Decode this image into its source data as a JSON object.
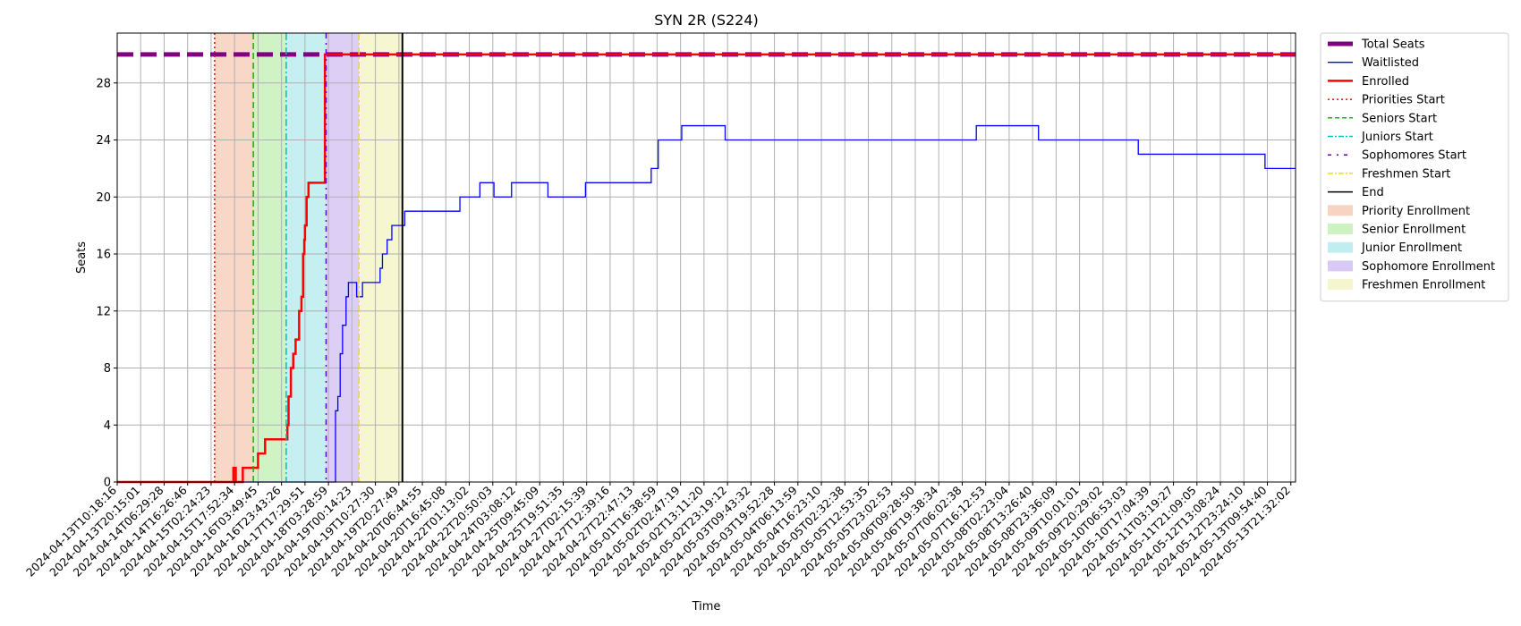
{
  "chart_data": {
    "type": "line",
    "title": "SYN 2R (S224)",
    "xlabel": "Time",
    "ylabel": "Seats",
    "ylim": [
      0,
      31.5
    ],
    "yticks": [
      0,
      4,
      8,
      12,
      16,
      20,
      24,
      28
    ],
    "grid": true,
    "legend_position": "outside-right",
    "x_tick_labels": [
      "2024-04-13T10:18:16",
      "2024-04-13T20:15:01",
      "2024-04-14T06:29:28",
      "2024-04-14T16:26:46",
      "2024-04-15T02:24:23",
      "2024-04-15T17:52:34",
      "2024-04-16T03:49:45",
      "2024-04-16T23:43:26",
      "2024-04-17T17:29:51",
      "2024-04-18T03:28:59",
      "2024-04-19T00:14:23",
      "2024-04-19T10:27:30",
      "2024-04-19T20:27:49",
      "2024-04-20T06:44:55",
      "2024-04-20T16:45:08",
      "2024-04-22T01:13:02",
      "2024-04-22T20:50:03",
      "2024-04-24T03:08:12",
      "2024-04-25T09:45:09",
      "2024-04-25T19:51:35",
      "2024-04-27T02:15:39",
      "2024-04-27T12:39:16",
      "2024-04-27T22:47:13",
      "2024-05-01T16:38:59",
      "2024-05-02T02:47:19",
      "2024-05-02T13:11:20",
      "2024-05-02T23:19:12",
      "2024-05-03T09:43:32",
      "2024-05-03T19:52:28",
      "2024-05-04T06:13:59",
      "2024-05-04T16:23:10",
      "2024-05-05T02:32:38",
      "2024-05-05T12:53:35",
      "2024-05-05T23:02:53",
      "2024-05-06T09:28:50",
      "2024-05-06T19:38:34",
      "2024-05-07T06:02:38",
      "2024-05-07T16:12:53",
      "2024-05-08T02:23:04",
      "2024-05-08T13:26:40",
      "2024-05-08T23:36:09",
      "2024-05-09T10:01:01",
      "2024-05-09T20:29:02",
      "2024-05-10T06:53:03",
      "2024-05-10T17:04:39",
      "2024-05-11T03:19:27",
      "2024-05-11T21:09:05",
      "2024-05-12T13:08:24",
      "2024-05-12T23:24:10",
      "2024-05-13T09:54:40",
      "2024-05-13T21:32:02"
    ],
    "series": [
      {
        "name": "Total Seats",
        "color": "#800080",
        "style": "dashed",
        "points": [
          [
            0,
            30
          ],
          [
            50.2,
            30
          ]
        ]
      },
      {
        "name": "Waitlisted",
        "color": "#0000ff",
        "style": "solid",
        "step": true,
        "points": [
          [
            0,
            0
          ],
          [
            9.25,
            0
          ],
          [
            9.3,
            5
          ],
          [
            9.4,
            6
          ],
          [
            9.5,
            9
          ],
          [
            9.6,
            11
          ],
          [
            9.75,
            13
          ],
          [
            9.85,
            14
          ],
          [
            10.2,
            13
          ],
          [
            10.45,
            14
          ],
          [
            11.1,
            14
          ],
          [
            11.2,
            15
          ],
          [
            11.3,
            16
          ],
          [
            11.5,
            17
          ],
          [
            11.7,
            18
          ],
          [
            12.25,
            19
          ],
          [
            14.6,
            20
          ],
          [
            15.45,
            21
          ],
          [
            16.05,
            20
          ],
          [
            16.8,
            21
          ],
          [
            18.35,
            20
          ],
          [
            19.95,
            21
          ],
          [
            22.75,
            22
          ],
          [
            23.05,
            24
          ],
          [
            24.05,
            25
          ],
          [
            25.9,
            24
          ],
          [
            36.6,
            25
          ],
          [
            39.25,
            24
          ],
          [
            43.5,
            23
          ],
          [
            48.9,
            22
          ],
          [
            50.2,
            22
          ]
        ]
      },
      {
        "name": "Enrolled",
        "color": "#ff0000",
        "style": "solid",
        "step": true,
        "points": [
          [
            0,
            0
          ],
          [
            4.9,
            0
          ],
          [
            4.95,
            1
          ],
          [
            5.05,
            0
          ],
          [
            5.3,
            0
          ],
          [
            5.35,
            1
          ],
          [
            5.95,
            1
          ],
          [
            6.0,
            2
          ],
          [
            6.25,
            2
          ],
          [
            6.3,
            3
          ],
          [
            7.2,
            3
          ],
          [
            7.25,
            4
          ],
          [
            7.3,
            6
          ],
          [
            7.4,
            8
          ],
          [
            7.5,
            9
          ],
          [
            7.6,
            10
          ],
          [
            7.75,
            12
          ],
          [
            7.85,
            13
          ],
          [
            7.92,
            16
          ],
          [
            7.97,
            17
          ],
          [
            8.0,
            18
          ],
          [
            8.07,
            20
          ],
          [
            8.15,
            21
          ],
          [
            8.8,
            21
          ],
          [
            8.85,
            30
          ],
          [
            50.2,
            30
          ]
        ]
      }
    ],
    "markers": [
      {
        "name": "Priorities Start",
        "x": 4.15,
        "color": "#ff0000",
        "style": "dotted"
      },
      {
        "name": "Seniors Start",
        "x": 5.8,
        "color": "#00bb00",
        "style": "dashed"
      },
      {
        "name": "Juniors Start",
        "x": 7.2,
        "color": "#00bfbf",
        "style": "dashdot"
      },
      {
        "name": "Sophomores Start",
        "x": 8.9,
        "color": "#6600cc",
        "style": "dashdot-sparse"
      },
      {
        "name": "Freshmen Start",
        "x": 10.3,
        "color": "#e6e600",
        "style": "dashdot"
      },
      {
        "name": "End",
        "x": 12.15,
        "color": "#000000",
        "style": "solid"
      }
    ],
    "regions": [
      {
        "name": "Priority Enrollment",
        "x0": 4.15,
        "x1": 5.8,
        "color": "#f4c2a8"
      },
      {
        "name": "Senior Enrollment",
        "x0": 5.8,
        "x1": 7.2,
        "color": "#b6eda6"
      },
      {
        "name": "Junior Enrollment",
        "x0": 7.2,
        "x1": 8.9,
        "color": "#a8e6ea"
      },
      {
        "name": "Sophomore Enrollment",
        "x0": 8.9,
        "x1": 10.3,
        "color": "#c9b3ee"
      },
      {
        "name": "Freshmen Enrollment",
        "x0": 10.3,
        "x1": 12.15,
        "color": "#f1f2b8"
      }
    ]
  }
}
